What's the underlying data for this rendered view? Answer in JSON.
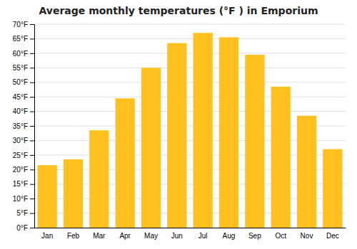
{
  "chart_data": {
    "type": "bar",
    "title": "Average monthly temperatures (°F ) in Emporium",
    "categories": [
      "Jan",
      "Feb",
      "Mar",
      "Apr",
      "May",
      "Jun",
      "Jul",
      "Aug",
      "Sep",
      "Oct",
      "Nov",
      "Dec"
    ],
    "values": [
      21.5,
      23.5,
      33.5,
      44.5,
      55.0,
      63.5,
      67.0,
      65.5,
      59.5,
      48.5,
      38.5,
      27.0
    ],
    "color": "#FFC020",
    "ylim": [
      0,
      70
    ],
    "yticks": [
      {
        "value": 0,
        "label": "0°F"
      },
      {
        "value": 5,
        "label": "5°F"
      },
      {
        "value": 10,
        "label": "10°F"
      },
      {
        "value": 15,
        "label": "15°F"
      },
      {
        "value": 20,
        "label": "20°F"
      },
      {
        "value": 25,
        "label": "25°F"
      },
      {
        "value": 30,
        "label": "30°F"
      },
      {
        "value": 35,
        "label": "35°F"
      },
      {
        "value": 40,
        "label": "40°F"
      },
      {
        "value": 45,
        "label": "45°F"
      },
      {
        "value": 50,
        "label": "50°F"
      },
      {
        "value": 55,
        "label": "55°F"
      },
      {
        "value": 60,
        "label": "60°F"
      },
      {
        "value": 65,
        "label": "65°F"
      },
      {
        "value": 70,
        "label": "70°F"
      }
    ],
    "grid": true
  }
}
